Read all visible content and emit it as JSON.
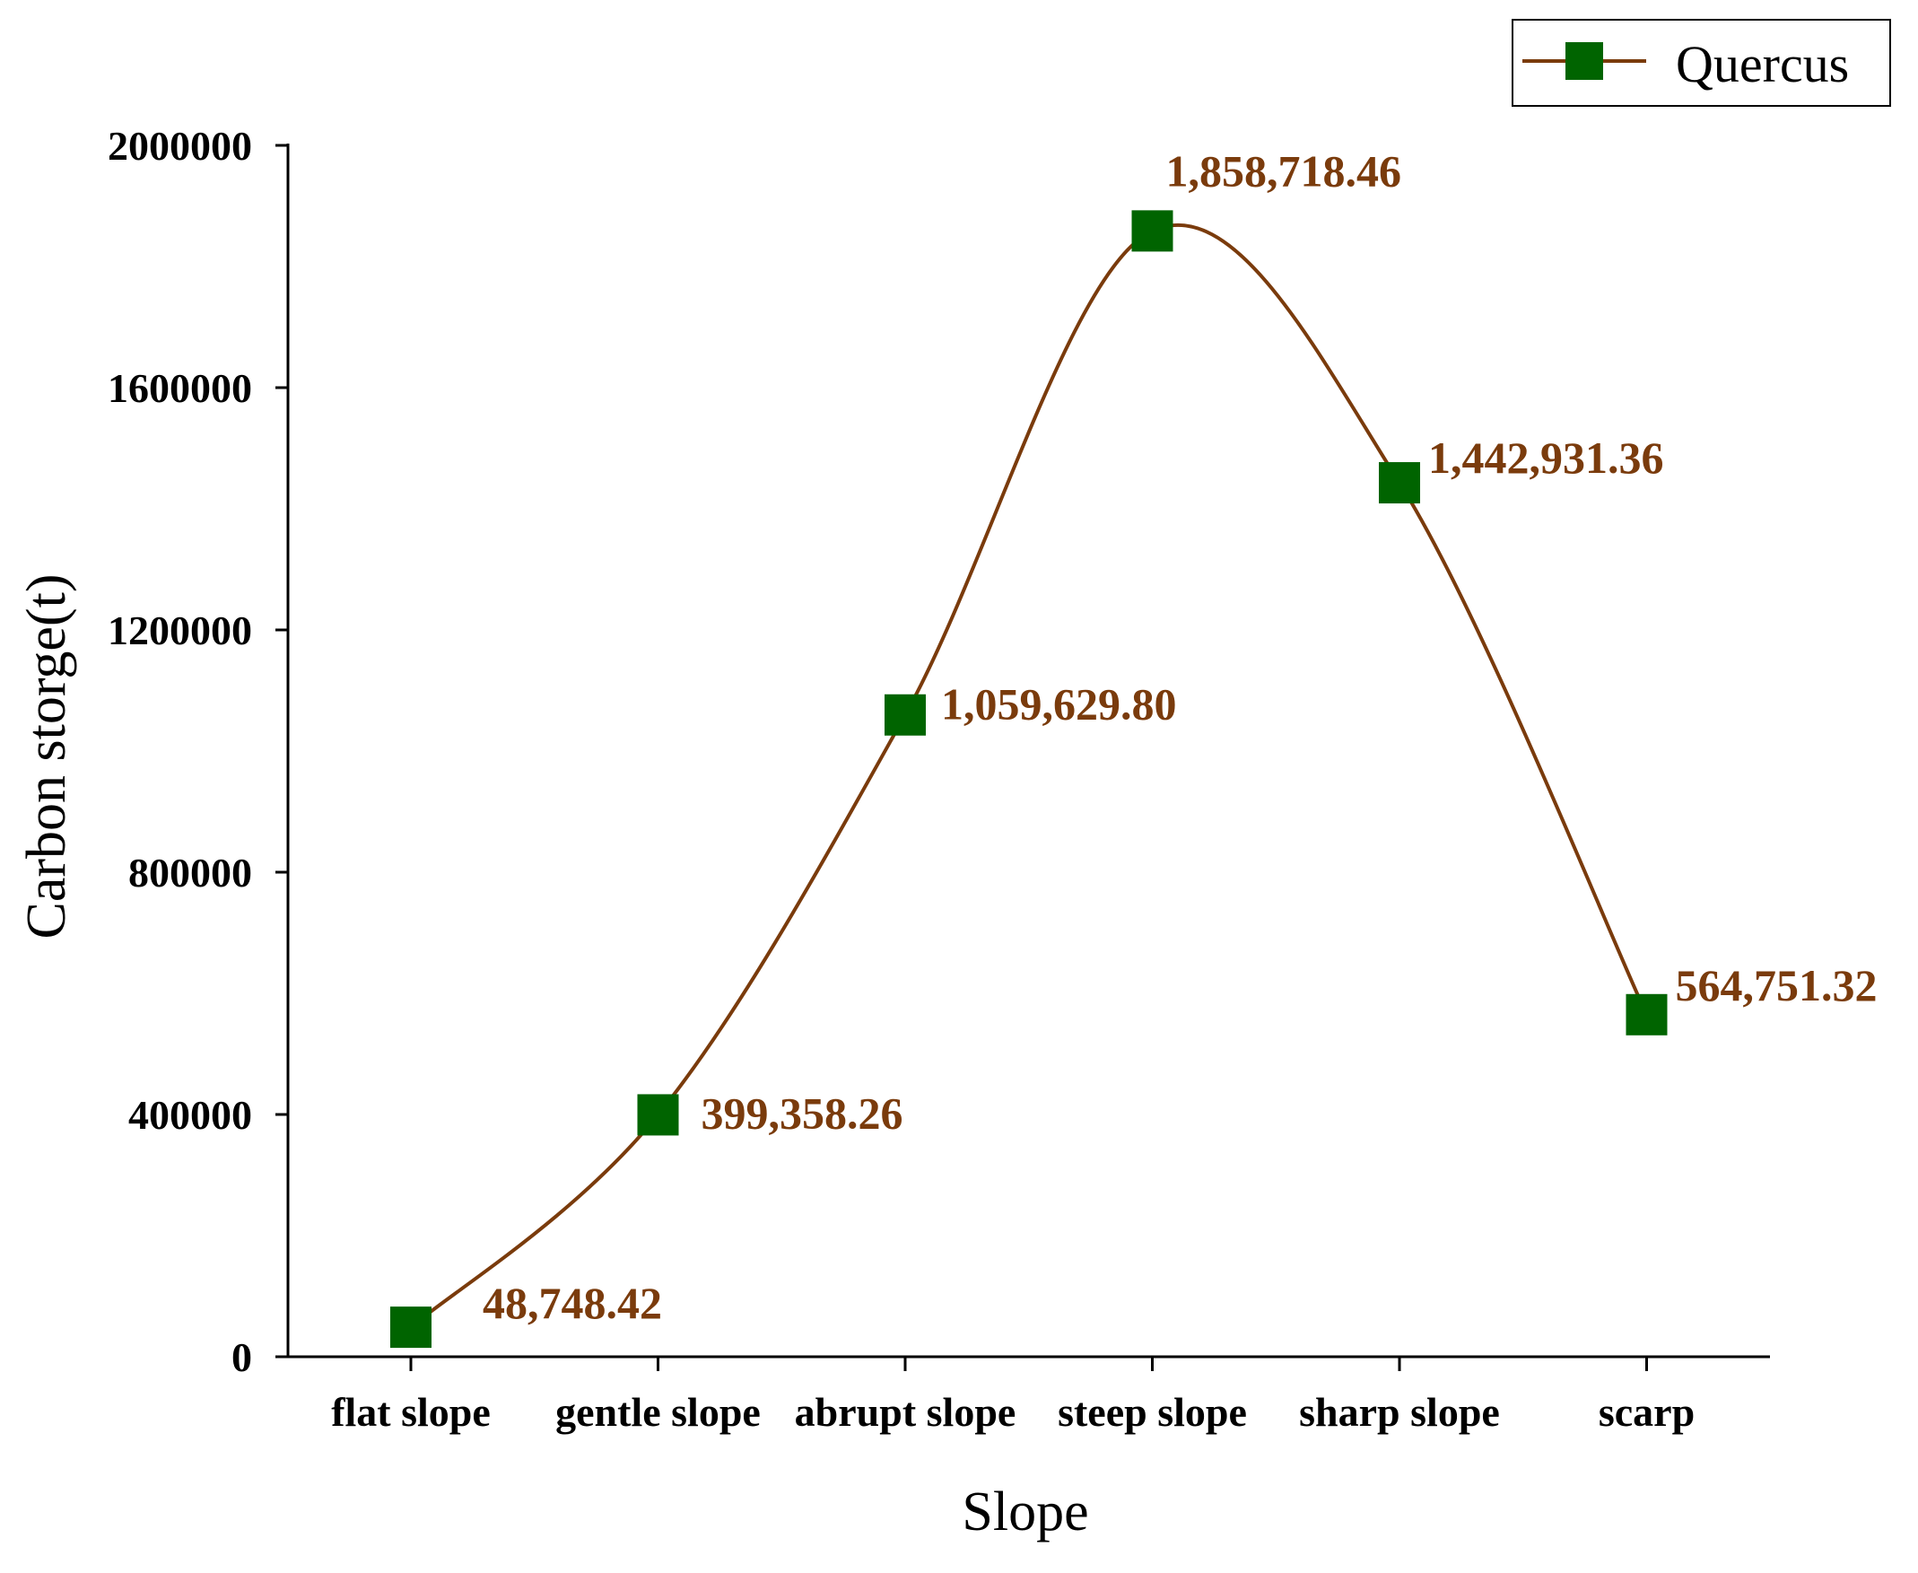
{
  "chart_data": {
    "type": "line",
    "categories": [
      "flat slope",
      "gentle slope",
      "abrupt slope",
      "steep slope",
      "sharp slope",
      "scarp"
    ],
    "series": [
      {
        "name": "Quercus",
        "values": [
          48748.42,
          399358.26,
          1059629.8,
          1858718.46,
          1442931.36,
          564751.32
        ],
        "labels": [
          "48,748.42",
          "399,358.26",
          "1,059,629.80",
          "1,858,718.46",
          "1,442,931.36",
          "564,751.32"
        ]
      }
    ],
    "xlabel": "Slope",
    "ylabel": "Carbon storge(t)",
    "ylim": [
      0,
      2000000
    ],
    "yticks": [
      "0",
      "400000",
      "800000",
      "1200000",
      "1600000",
      "2000000"
    ],
    "ytick_values": [
      0,
      400000,
      800000,
      1200000,
      1600000,
      2000000
    ],
    "line_style": "smooth",
    "marker": "square",
    "grid": false,
    "legend_position": "top-right",
    "colors": {
      "line": "#7a3b0c",
      "marker": "#006400",
      "label": "#7a3b0c",
      "axis": "#000000"
    }
  }
}
